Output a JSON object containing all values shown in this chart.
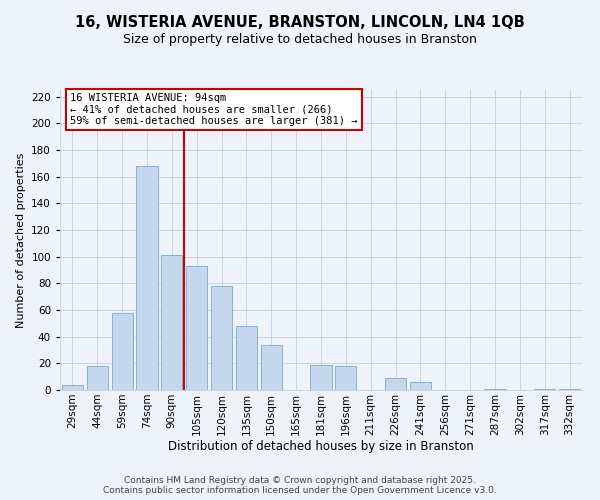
{
  "title": "16, WISTERIA AVENUE, BRANSTON, LINCOLN, LN4 1QB",
  "subtitle": "Size of property relative to detached houses in Branston",
  "xlabel": "Distribution of detached houses by size in Branston",
  "ylabel": "Number of detached properties",
  "categories": [
    "29sqm",
    "44sqm",
    "59sqm",
    "74sqm",
    "90sqm",
    "105sqm",
    "120sqm",
    "135sqm",
    "150sqm",
    "165sqm",
    "181sqm",
    "196sqm",
    "211sqm",
    "226sqm",
    "241sqm",
    "256sqm",
    "271sqm",
    "287sqm",
    "302sqm",
    "317sqm",
    "332sqm"
  ],
  "bar_values": [
    4,
    18,
    58,
    168,
    101,
    93,
    78,
    48,
    34,
    0,
    19,
    18,
    0,
    9,
    6,
    0,
    0,
    1,
    0,
    1,
    1
  ],
  "bar_color": "#c5d8ed",
  "bar_edge_color": "#7aaac8",
  "vline_color": "#cc0000",
  "ylim": [
    0,
    225
  ],
  "yticks": [
    0,
    20,
    40,
    60,
    80,
    100,
    120,
    140,
    160,
    180,
    200,
    220
  ],
  "annotation_title": "16 WISTERIA AVENUE: 94sqm",
  "annotation_line1": "← 41% of detached houses are smaller (266)",
  "annotation_line2": "59% of semi-detached houses are larger (381) →",
  "annotation_box_color": "#ffffff",
  "annotation_box_edge": "#cc0000",
  "footer1": "Contains HM Land Registry data © Crown copyright and database right 2025.",
  "footer2": "Contains public sector information licensed under the Open Government Licence v3.0.",
  "bg_color": "#eef2fb",
  "grid_color": "#c8d4e8",
  "title_fontsize": 10.5,
  "subtitle_fontsize": 9,
  "ylabel_fontsize": 8,
  "xlabel_fontsize": 8.5,
  "tick_fontsize": 7.5,
  "footer_fontsize": 6.5
}
